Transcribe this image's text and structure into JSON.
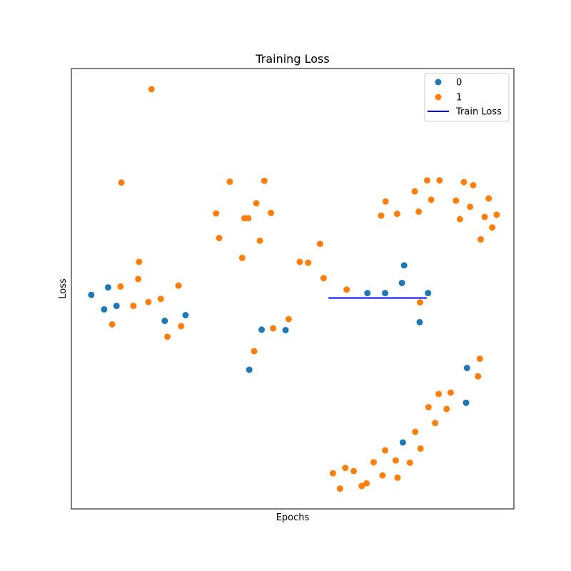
{
  "chart_data": {
    "type": "scatter",
    "title": "Training Loss",
    "xlabel": "Epochs",
    "ylabel": "Loss",
    "xlim": [
      0,
      100
    ],
    "ylim": [
      0,
      100
    ],
    "grid": false,
    "legend_placement": "top-right",
    "series": [
      {
        "name": "0",
        "kind": "scatter",
        "color": "#1f77b4",
        "points": [
          [
            4.5,
            48.6
          ],
          [
            7.4,
            45.3
          ],
          [
            8.3,
            50.3
          ],
          [
            10.2,
            46.1
          ],
          [
            21.1,
            42.7
          ],
          [
            25.8,
            44.0
          ],
          [
            40.2,
            31.6
          ],
          [
            43.0,
            40.7
          ],
          [
            48.4,
            40.6
          ],
          [
            66.9,
            49.0
          ],
          [
            70.9,
            49.0
          ],
          [
            74.7,
            51.3
          ],
          [
            75.2,
            55.3
          ],
          [
            78.7,
            42.4
          ],
          [
            80.6,
            49.0
          ],
          [
            74.9,
            15.1
          ],
          [
            89.2,
            24.1
          ],
          [
            89.4,
            32.0
          ]
        ]
      },
      {
        "name": "1",
        "kind": "scatter",
        "color": "#ff7f0e",
        "points": [
          [
            18.1,
            95.3
          ],
          [
            11.3,
            74.1
          ],
          [
            15.3,
            56.1
          ],
          [
            15.1,
            52.2
          ],
          [
            11.1,
            50.5
          ],
          [
            9.2,
            41.9
          ],
          [
            14.0,
            46.1
          ],
          [
            17.4,
            47.0
          ],
          [
            20.2,
            47.7
          ],
          [
            21.7,
            39.1
          ],
          [
            24.2,
            50.7
          ],
          [
            24.8,
            41.5
          ],
          [
            32.7,
            67.1
          ],
          [
            33.4,
            61.5
          ],
          [
            35.8,
            74.3
          ],
          [
            39.1,
            66.0
          ],
          [
            40.0,
            66.0
          ],
          [
            38.6,
            57.0
          ],
          [
            41.3,
            35.8
          ],
          [
            41.8,
            69.4
          ],
          [
            42.6,
            60.9
          ],
          [
            43.6,
            74.5
          ],
          [
            45.1,
            67.2
          ],
          [
            45.6,
            41.0
          ],
          [
            49.1,
            43.1
          ],
          [
            51.6,
            56.1
          ],
          [
            53.5,
            55.9
          ],
          [
            56.2,
            60.2
          ],
          [
            57.0,
            52.4
          ],
          [
            62.2,
            49.8
          ],
          [
            70.0,
            66.6
          ],
          [
            71.0,
            69.8
          ],
          [
            73.6,
            67.0
          ],
          [
            77.6,
            72.1
          ],
          [
            78.5,
            67.5
          ],
          [
            80.4,
            74.6
          ],
          [
            81.3,
            70.2
          ],
          [
            83.2,
            74.6
          ],
          [
            86.9,
            70.0
          ],
          [
            87.8,
            65.8
          ],
          [
            88.7,
            74.2
          ],
          [
            90.1,
            68.6
          ],
          [
            90.8,
            73.5
          ],
          [
            92.5,
            61.2
          ],
          [
            93.4,
            66.3
          ],
          [
            94.3,
            70.5
          ],
          [
            95.1,
            63.9
          ],
          [
            96.1,
            66.8
          ],
          [
            78.8,
            46.9
          ],
          [
            59.1,
            8.1
          ],
          [
            60.7,
            4.6
          ],
          [
            61.9,
            9.3
          ],
          [
            63.8,
            8.6
          ],
          [
            65.6,
            5.2
          ],
          [
            66.7,
            5.8
          ],
          [
            68.3,
            10.6
          ],
          [
            70.3,
            7.6
          ],
          [
            70.9,
            13.3
          ],
          [
            73.3,
            11.0
          ],
          [
            73.7,
            7.1
          ],
          [
            76.5,
            10.5
          ],
          [
            77.7,
            17.5
          ],
          [
            78.9,
            13.7
          ],
          [
            80.7,
            23.1
          ],
          [
            82.2,
            19.5
          ],
          [
            83.0,
            26.1
          ],
          [
            84.8,
            22.7
          ],
          [
            85.7,
            26.4
          ],
          [
            92.3,
            34.1
          ],
          [
            91.9,
            30.1
          ]
        ]
      },
      {
        "name": "Train Loss",
        "kind": "line",
        "color": "#0000ff",
        "points": [
          [
            58.1,
            47.9
          ],
          [
            80.3,
            47.9
          ]
        ]
      }
    ]
  }
}
